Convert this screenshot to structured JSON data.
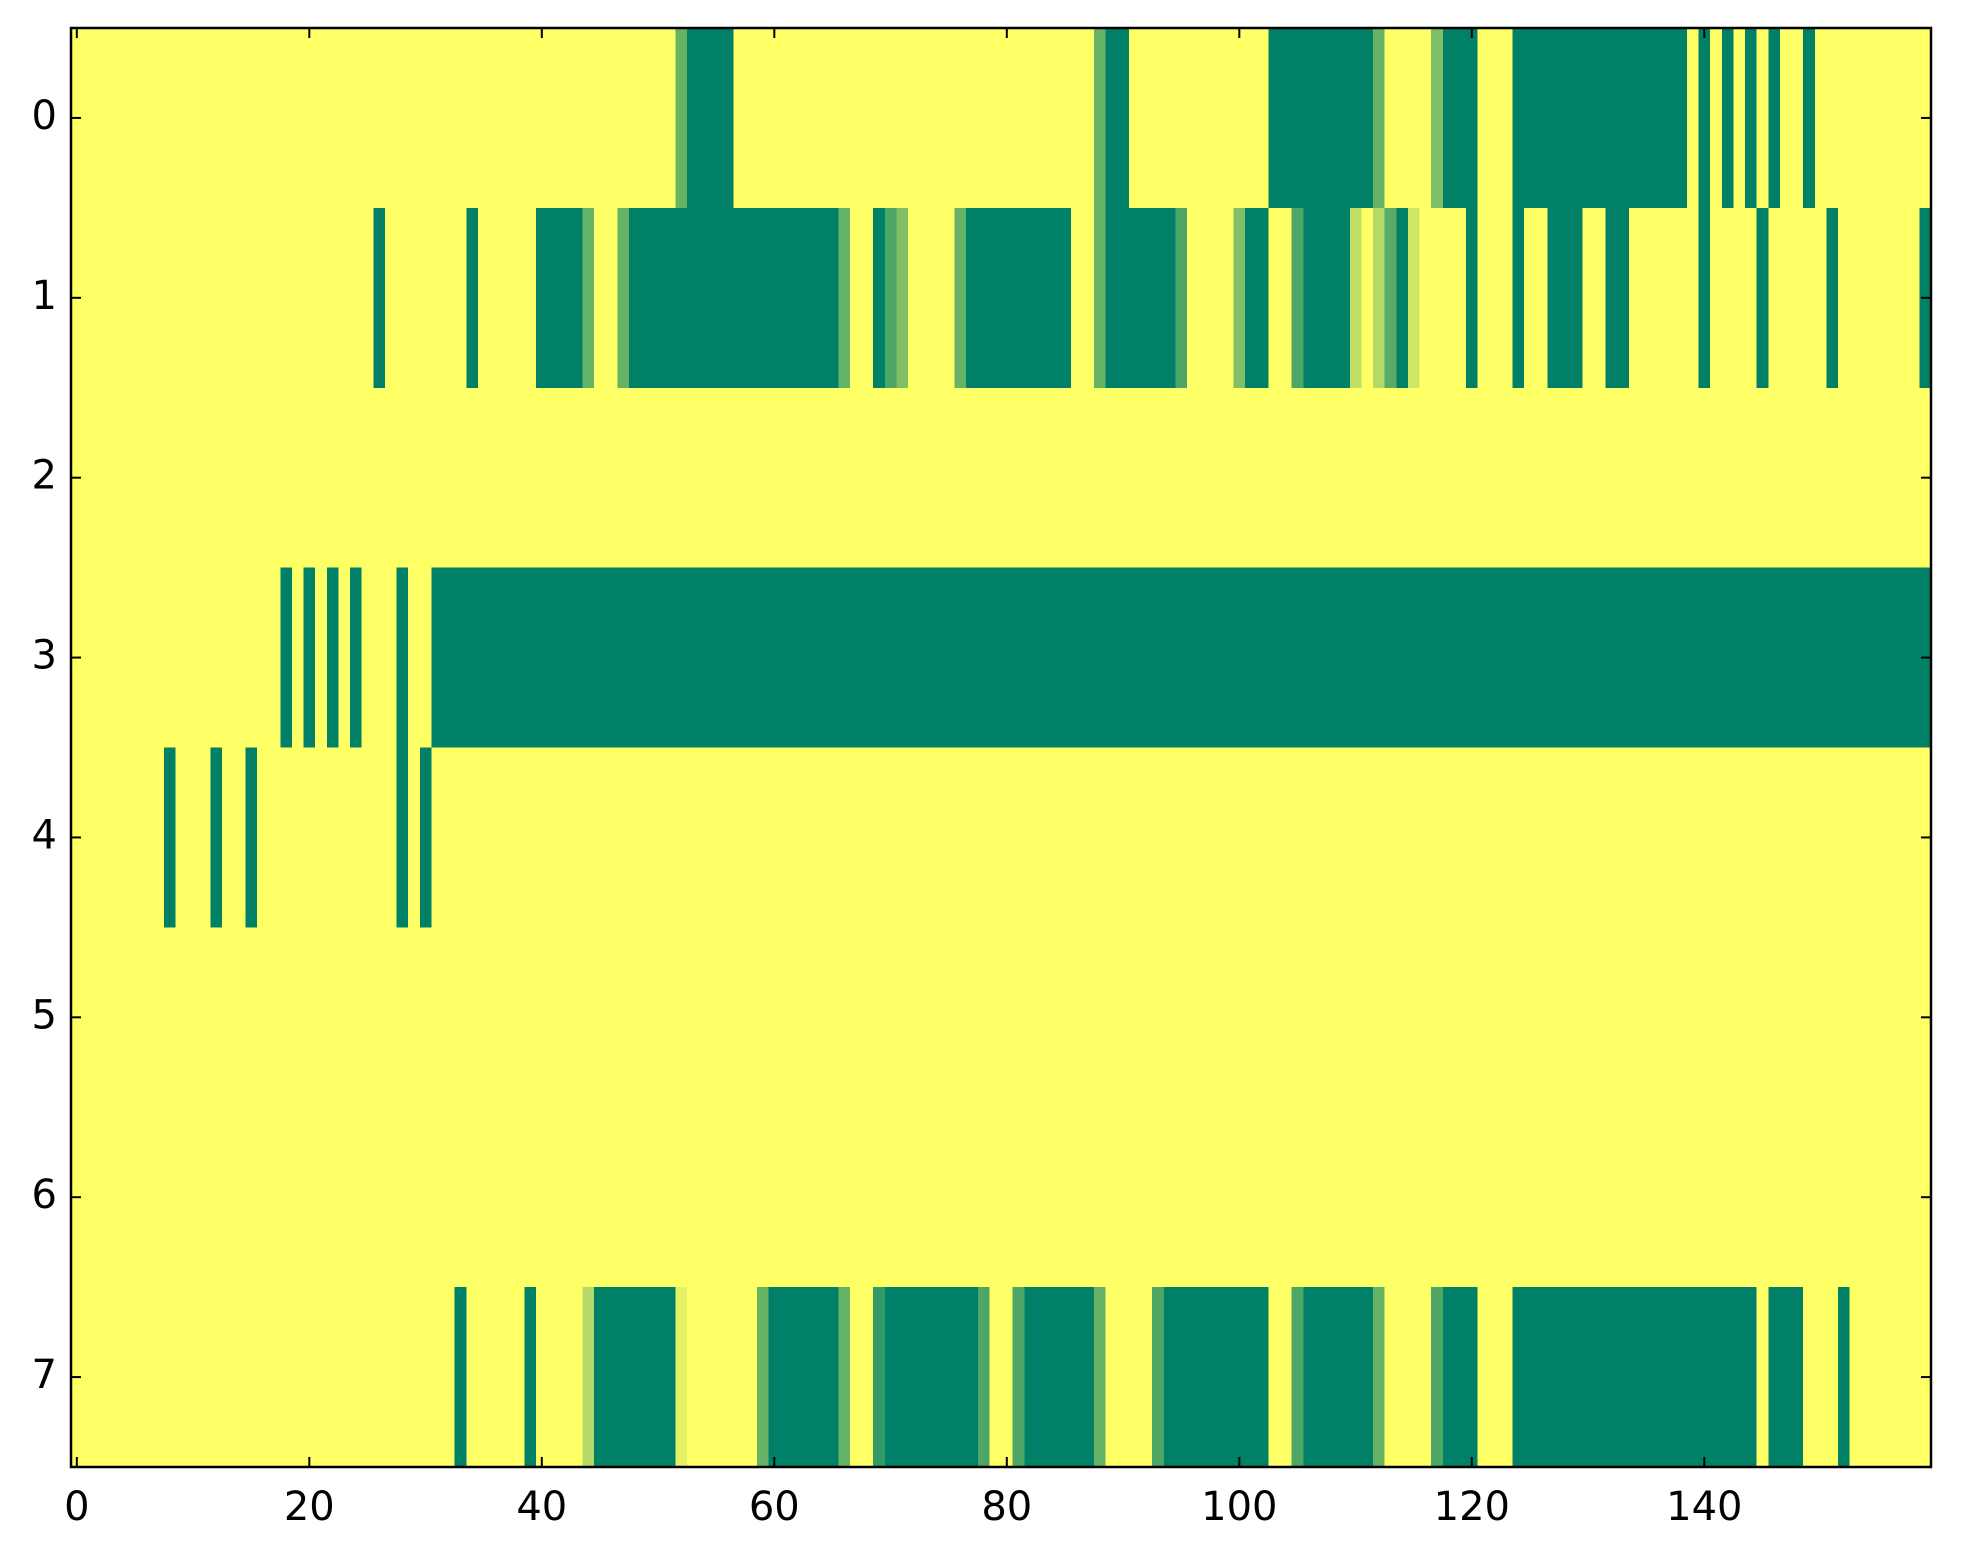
{
  "chart_data": {
    "type": "heatmap",
    "colormap": "summer",
    "xlim": [
      -0.5,
      159.5
    ],
    "ylim": [
      7.5,
      -0.5
    ],
    "xticks": [
      0,
      20,
      40,
      60,
      80,
      100,
      120,
      140
    ],
    "yticks": [
      0,
      1,
      2,
      3,
      4,
      5,
      6,
      7
    ],
    "z": [
      [
        1,
        1,
        1,
        1,
        1,
        1,
        1,
        1,
        1,
        1,
        1,
        1,
        1,
        1,
        1,
        1,
        1,
        1,
        1,
        1,
        1,
        1,
        1,
        1,
        1,
        1,
        1,
        1,
        1,
        1,
        1,
        1,
        1,
        1,
        1,
        1,
        1,
        1,
        1,
        1,
        1,
        1,
        1,
        1,
        1,
        1,
        1,
        1,
        1,
        1,
        1,
        1,
        0.4,
        0,
        0,
        0,
        0,
        1,
        1,
        1,
        1,
        1,
        1,
        1,
        1,
        1,
        1,
        1,
        1,
        1,
        1,
        1,
        1,
        1,
        1,
        1,
        1,
        1,
        1,
        1,
        1,
        1,
        1,
        1,
        1,
        1,
        1,
        1,
        0.4,
        0,
        0,
        1,
        1,
        1,
        1,
        1,
        1,
        1,
        1,
        1,
        1,
        1,
        1,
        0,
        0,
        0,
        0,
        0,
        0,
        0,
        0,
        0,
        0.4,
        1,
        1,
        1,
        1,
        0.5,
        0,
        0,
        0,
        1,
        1,
        1,
        0,
        0,
        0,
        0,
        0,
        0,
        0,
        0,
        0,
        0,
        0,
        0,
        0,
        0,
        0,
        1,
        0,
        1,
        0,
        1,
        0,
        1,
        0,
        1,
        1,
        0,
        1,
        1,
        1,
        1,
        1,
        1,
        1,
        1,
        1,
        1
      ],
      [
        1,
        1,
        1,
        1,
        1,
        1,
        1,
        1,
        1,
        1,
        1,
        1,
        1,
        1,
        1,
        1,
        1,
        1,
        1,
        1,
        1,
        1,
        1,
        1,
        1,
        1,
        0,
        1,
        1,
        1,
        1,
        1,
        1,
        1,
        0,
        1,
        1,
        1,
        1,
        1,
        0,
        0,
        0,
        0,
        0.4,
        1,
        1,
        0.4,
        0,
        0,
        0,
        0,
        0,
        0,
        0,
        0,
        0,
        0,
        0,
        0,
        0,
        0,
        0,
        0,
        0,
        0,
        0.4,
        1,
        1,
        0,
        0.3,
        0.5,
        1,
        1,
        1,
        1,
        0.4,
        0,
        0,
        0,
        0,
        0,
        0,
        0,
        0,
        0,
        1,
        1,
        0.4,
        0,
        0,
        0,
        0,
        0,
        0,
        0.3,
        1,
        1,
        1,
        1,
        0.5,
        0,
        0,
        1,
        1,
        0.3,
        0,
        0,
        0,
        0,
        0.75,
        1,
        0.7,
        0.35,
        0,
        0.8,
        1,
        1,
        1,
        1,
        0,
        1,
        1,
        1,
        0,
        1,
        1,
        0,
        0,
        0,
        1,
        1,
        0,
        0,
        1,
        1,
        1,
        1,
        1,
        1,
        0,
        1,
        1,
        1,
        1,
        0,
        1,
        1,
        1,
        1,
        1,
        0,
        1,
        1,
        1,
        1,
        1,
        1,
        1,
        0
      ],
      [
        1,
        1,
        1,
        1,
        1,
        1,
        1,
        1,
        1,
        1,
        1,
        1,
        1,
        1,
        1,
        1,
        1,
        1,
        1,
        1,
        1,
        1,
        1,
        1,
        1,
        1,
        1,
        1,
        1,
        1,
        1,
        1,
        1,
        1,
        1,
        1,
        1,
        1,
        1,
        1,
        1,
        1,
        1,
        1,
        1,
        1,
        1,
        1,
        1,
        1,
        1,
        1,
        1,
        1,
        1,
        1,
        1,
        1,
        1,
        1,
        1,
        1,
        1,
        1,
        1,
        1,
        1,
        1,
        1,
        1,
        1,
        1,
        1,
        1,
        1,
        1,
        1,
        1,
        1,
        1,
        1,
        1,
        1,
        1,
        1,
        1,
        1,
        1,
        1,
        1,
        1,
        1,
        1,
        1,
        1,
        1,
        1,
        1,
        1,
        1,
        1,
        1,
        1,
        1,
        1,
        1,
        1,
        1,
        1,
        1,
        1,
        1,
        1,
        1,
        1,
        1,
        1,
        1,
        1,
        1,
        1,
        1,
        1,
        1,
        1,
        1,
        1,
        1,
        1,
        1,
        1,
        1,
        1,
        1,
        1,
        1,
        1,
        1,
        1,
        1,
        1,
        1,
        1,
        1,
        1,
        1,
        1,
        1,
        1,
        1,
        1,
        1,
        1,
        1,
        1,
        1,
        1,
        1,
        1,
        1
      ],
      [
        1,
        1,
        1,
        1,
        1,
        1,
        1,
        1,
        1,
        1,
        1,
        1,
        1,
        1,
        1,
        1,
        1,
        1,
        0,
        1,
        0,
        1,
        0,
        1,
        0,
        1,
        1,
        1,
        0,
        1,
        1,
        0,
        0,
        0,
        0,
        0,
        0,
        0,
        0,
        0,
        0,
        0,
        0,
        0,
        0,
        0,
        0,
        0,
        0,
        0,
        0,
        0,
        0,
        0,
        0,
        0,
        0,
        0,
        0,
        0,
        0,
        0,
        0,
        0,
        0,
        0,
        0,
        0,
        0,
        0,
        0,
        0,
        0,
        0,
        0,
        0,
        0,
        0,
        0,
        0,
        0,
        0,
        0,
        0,
        0,
        0,
        0,
        0,
        0,
        0,
        0,
        0,
        0,
        0,
        0,
        0,
        0,
        0,
        0,
        0,
        0,
        0,
        0,
        0,
        0,
        0,
        0,
        0,
        0,
        0,
        0,
        0,
        0,
        0,
        0,
        0,
        0,
        0,
        0,
        0,
        0,
        0,
        0,
        0,
        0,
        0,
        0,
        0,
        0,
        0,
        0,
        0,
        0,
        0,
        0,
        0,
        0,
        0,
        0,
        0,
        0,
        0,
        0,
        0,
        0,
        0,
        0,
        0,
        0,
        0,
        0,
        0,
        0,
        0,
        0,
        0,
        0,
        0,
        0,
        0
      ],
      [
        1,
        1,
        1,
        1,
        1,
        1,
        1,
        1,
        0,
        1,
        1,
        1,
        0,
        1,
        1,
        0,
        1,
        1,
        1,
        1,
        1,
        1,
        1,
        1,
        1,
        1,
        1,
        1,
        0,
        1,
        0,
        1,
        1,
        1,
        1,
        1,
        1,
        1,
        1,
        1,
        1,
        1,
        1,
        1,
        1,
        1,
        1,
        1,
        1,
        1,
        1,
        1,
        1,
        1,
        1,
        1,
        1,
        1,
        1,
        1,
        1,
        1,
        1,
        1,
        1,
        1,
        1,
        1,
        1,
        1,
        1,
        1,
        1,
        1,
        1,
        1,
        1,
        1,
        1,
        1,
        1,
        1,
        1,
        1,
        1,
        1,
        1,
        1,
        1,
        1,
        1,
        1,
        1,
        1,
        1,
        1,
        1,
        1,
        1,
        1,
        1,
        1,
        1,
        1,
        1,
        1,
        1,
        1,
        1,
        1,
        1,
        1,
        1,
        1,
        1,
        1,
        1,
        1,
        1,
        1,
        1,
        1,
        1,
        1,
        1,
        1,
        1,
        1,
        1,
        1,
        1,
        1,
        1,
        1,
        1,
        1,
        1,
        1,
        1,
        1,
        1,
        1,
        1,
        1,
        1,
        1,
        1,
        1,
        1,
        1,
        1,
        1,
        1,
        1,
        1,
        1,
        1,
        1,
        1,
        1
      ],
      [
        1,
        1,
        1,
        1,
        1,
        1,
        1,
        1,
        1,
        1,
        1,
        1,
        1,
        1,
        1,
        1,
        1,
        1,
        1,
        1,
        1,
        1,
        1,
        1,
        1,
        1,
        1,
        1,
        1,
        1,
        1,
        1,
        1,
        1,
        1,
        1,
        1,
        1,
        1,
        1,
        1,
        1,
        1,
        1,
        1,
        1,
        1,
        1,
        1,
        1,
        1,
        1,
        1,
        1,
        1,
        1,
        1,
        1,
        1,
        1,
        1,
        1,
        1,
        1,
        1,
        1,
        1,
        1,
        1,
        1,
        1,
        1,
        1,
        1,
        1,
        1,
        1,
        1,
        1,
        1,
        1,
        1,
        1,
        1,
        1,
        1,
        1,
        1,
        1,
        1,
        1,
        1,
        1,
        1,
        1,
        1,
        1,
        1,
        1,
        1,
        1,
        1,
        1,
        1,
        1,
        1,
        1,
        1,
        1,
        1,
        1,
        1,
        1,
        1,
        1,
        1,
        1,
        1,
        1,
        1,
        1,
        1,
        1,
        1,
        1,
        1,
        1,
        1,
        1,
        1,
        1,
        1,
        1,
        1,
        1,
        1,
        1,
        1,
        1,
        1,
        1,
        1,
        1,
        1,
        1,
        1,
        1,
        1,
        1,
        1,
        1,
        1,
        1,
        1,
        1,
        1,
        1,
        1,
        1,
        1
      ],
      [
        1,
        1,
        1,
        1,
        1,
        1,
        1,
        1,
        1,
        1,
        1,
        1,
        1,
        1,
        1,
        1,
        1,
        1,
        1,
        1,
        1,
        1,
        1,
        1,
        1,
        1,
        1,
        1,
        1,
        1,
        1,
        1,
        1,
        1,
        1,
        1,
        1,
        1,
        1,
        1,
        1,
        1,
        1,
        1,
        1,
        1,
        1,
        1,
        1,
        1,
        1,
        1,
        1,
        1,
        1,
        1,
        1,
        1,
        1,
        1,
        1,
        1,
        1,
        1,
        1,
        1,
        1,
        1,
        1,
        1,
        1,
        1,
        1,
        1,
        1,
        1,
        1,
        1,
        1,
        1,
        1,
        1,
        1,
        1,
        1,
        1,
        1,
        1,
        1,
        1,
        1,
        1,
        1,
        1,
        1,
        1,
        1,
        1,
        1,
        1,
        1,
        1,
        1,
        1,
        1,
        1,
        1,
        1,
        1,
        1,
        1,
        1,
        1,
        1,
        1,
        1,
        1,
        1,
        1,
        1,
        1,
        1,
        1,
        1,
        1,
        1,
        1,
        1,
        1,
        1,
        1,
        1,
        1,
        1,
        1,
        1,
        1,
        1,
        1,
        1,
        1,
        1,
        1,
        1,
        1,
        1,
        1,
        1,
        1,
        1,
        1,
        1,
        1,
        1,
        1,
        1,
        1,
        1,
        1,
        1
      ],
      [
        1,
        1,
        1,
        1,
        1,
        1,
        1,
        1,
        1,
        1,
        1,
        1,
        1,
        1,
        1,
        1,
        1,
        1,
        1,
        1,
        1,
        1,
        1,
        1,
        1,
        1,
        1,
        1,
        1,
        1,
        1,
        1,
        1,
        0,
        1,
        1,
        1,
        1,
        1,
        0,
        1,
        1,
        1,
        1,
        0.7,
        0,
        0,
        0,
        0,
        0,
        0,
        0,
        0.9,
        1,
        1,
        1,
        1,
        1,
        1,
        0.4,
        0,
        0,
        0,
        0,
        0,
        0,
        0.4,
        1,
        1,
        0.2,
        0,
        0,
        0,
        0,
        0,
        0,
        0,
        0,
        0.3,
        1,
        1,
        0.3,
        0,
        0,
        0,
        0,
        0,
        0,
        0.4,
        1,
        1,
        1,
        1,
        0.3,
        0,
        0,
        0,
        0,
        0,
        0,
        0,
        0,
        0,
        1,
        1,
        0.3,
        0,
        0,
        0,
        0,
        0,
        0,
        0.4,
        1,
        1,
        1,
        1,
        0.3,
        0,
        0,
        0,
        1,
        1,
        1,
        0,
        0,
        0,
        0,
        0,
        0,
        0,
        0,
        0,
        0,
        0,
        0,
        0,
        0,
        0,
        0,
        0,
        0,
        0,
        0,
        0,
        1,
        0,
        0,
        0,
        1,
        1,
        1,
        0,
        1,
        1,
        1,
        1,
        1,
        1,
        1
      ]
    ]
  }
}
